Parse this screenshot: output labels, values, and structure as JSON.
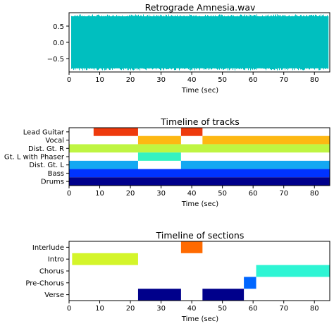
{
  "chart_data": [
    {
      "type": "line",
      "title": "Retrograde Amnesia.wav",
      "xlabel": "Time (sec)",
      "ylabel": "",
      "xlim": [
        0,
        85
      ],
      "ylim": [
        -0.9,
        0.9
      ],
      "xticks": [
        "0",
        "10",
        "20",
        "30",
        "40",
        "50",
        "60",
        "70",
        "80"
      ],
      "yticks": [
        "0.5",
        "0.0",
        "−0.5"
      ],
      "grid": false,
      "series": [
        {
          "color": "#00bfbf",
          "x_start": 0.8,
          "x_end": 84.6,
          "envelope_amplitude": 0.85
        }
      ]
    },
    {
      "type": "bar",
      "orientation": "horizontal",
      "title": "Timeline of tracks",
      "xlabel": "Time (sec)",
      "xlim": [
        0,
        85
      ],
      "xticks": [
        "0",
        "10",
        "20",
        "30",
        "40",
        "50",
        "60",
        "70",
        "80"
      ],
      "categories": [
        "Lead Guitar",
        "Vocal",
        "Dist. Gt. R",
        "Gt. L with Phaser",
        "Dist. Gt. L",
        "Bass",
        "Drums"
      ],
      "grid": false,
      "series": [
        {
          "category": "Lead Guitar",
          "color": "#ee3a0d",
          "segments": [
            [
              8,
              22.5
            ],
            [
              36.5,
              43.5
            ]
          ]
        },
        {
          "category": "Vocal",
          "color": "#fdb813",
          "segments": [
            [
              22.5,
              36.5
            ],
            [
              43.5,
              85
            ]
          ]
        },
        {
          "category": "Dist. Gt. R",
          "color": "#bff542",
          "segments": [
            [
              0,
              85
            ]
          ]
        },
        {
          "category": "Gt. L with Phaser",
          "color": "#34f2c2",
          "segments": [
            [
              22.5,
              36.5
            ]
          ]
        },
        {
          "category": "Dist. Gt. L",
          "color": "#14a8f2",
          "segments": [
            [
              0,
              22.5
            ],
            [
              36.5,
              85
            ]
          ]
        },
        {
          "category": "Bass",
          "color": "#0033ff",
          "segments": [
            [
              0,
              85
            ]
          ]
        },
        {
          "category": "Drums",
          "color": "#00008b",
          "segments": [
            [
              0,
              85
            ]
          ]
        }
      ]
    },
    {
      "type": "bar",
      "orientation": "horizontal",
      "title": "Timeline of sections",
      "xlabel": "Time (sec)",
      "xlim": [
        0,
        85
      ],
      "xticks": [
        "0",
        "10",
        "20",
        "30",
        "40",
        "50",
        "60",
        "70",
        "80"
      ],
      "categories": [
        "Interlude",
        "Intro",
        "Chorus",
        "Pre-Chorus",
        "Verse"
      ],
      "grid": false,
      "series": [
        {
          "category": "Interlude",
          "color": "#ff6a00",
          "segments": [
            [
              36.5,
              43.5
            ]
          ]
        },
        {
          "category": "Intro",
          "color": "#d4f52a",
          "segments": [
            [
              1,
              22.5
            ]
          ]
        },
        {
          "category": "Chorus",
          "color": "#2ef5d4",
          "segments": [
            [
              61,
              85
            ]
          ]
        },
        {
          "category": "Pre-Chorus",
          "color": "#0066ff",
          "segments": [
            [
              57,
              61
            ]
          ]
        },
        {
          "category": "Verse",
          "color": "#00008b",
          "segments": [
            [
              22.5,
              36.5
            ],
            [
              43.5,
              57
            ]
          ]
        }
      ]
    }
  ]
}
